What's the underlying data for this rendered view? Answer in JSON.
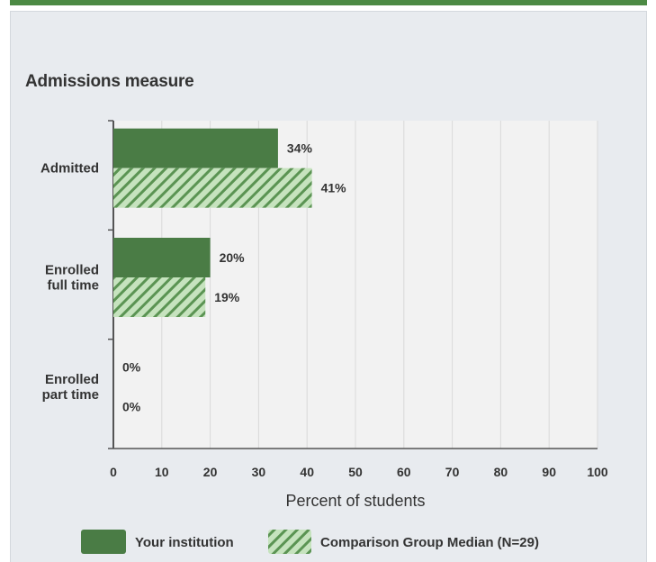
{
  "colors": {
    "institution": "#4a7c45",
    "comparison_fill": "#c6e3be",
    "comparison_stripe": "#5b9453",
    "plot_bg": "#f2f2f2",
    "panel_bg": "#e8ebef",
    "accent_rule": "#4c8a44"
  },
  "chart_data": {
    "type": "bar",
    "orientation": "horizontal",
    "title": "Admissions measure",
    "xlabel": "Percent of students",
    "xlim": [
      0,
      100
    ],
    "xticks": [
      0,
      10,
      20,
      30,
      40,
      50,
      60,
      70,
      80,
      90,
      100
    ],
    "xtick_labels": [
      "0",
      "10",
      "20",
      "30",
      "40",
      "50",
      "60",
      "70",
      "80",
      "90",
      "100"
    ],
    "grid": true,
    "legend_position": "bottom",
    "categories": [
      [
        "Admitted"
      ],
      [
        "Enrolled",
        "full time"
      ],
      [
        "Enrolled",
        "part time"
      ]
    ],
    "series": [
      {
        "name": "Your institution",
        "values": [
          34,
          20,
          0
        ],
        "labels": [
          "34%",
          "20%",
          "0%"
        ],
        "pattern": "solid"
      },
      {
        "name": "Comparison Group Median (N=29)",
        "values": [
          41,
          19,
          0
        ],
        "labels": [
          "41%",
          "19%",
          "0%"
        ],
        "pattern": "hatched"
      }
    ]
  }
}
